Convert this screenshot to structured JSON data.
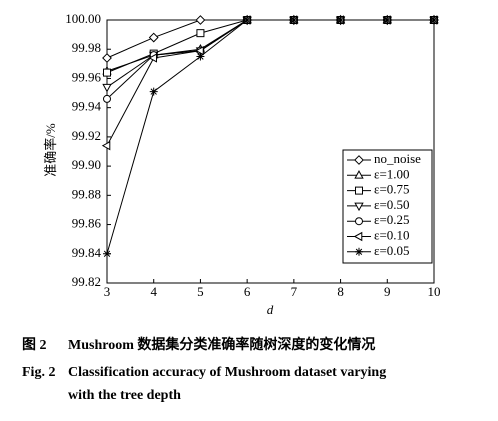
{
  "chart_data": {
    "type": "line",
    "xlabel": "d",
    "ylabel": "准确率/%",
    "x": [
      3,
      4,
      5,
      6,
      7,
      8,
      9,
      10
    ],
    "xlim": [
      3,
      10
    ],
    "xticks": [
      3,
      4,
      5,
      6,
      7,
      8,
      9,
      10
    ],
    "ylim": [
      99.82,
      100.0
    ],
    "yticks": [
      {
        "value": 99.82,
        "label": "99.82"
      },
      {
        "value": 99.84,
        "label": "99.84"
      },
      {
        "value": 99.86,
        "label": "99.86"
      },
      {
        "value": 99.88,
        "label": "99.88"
      },
      {
        "value": 99.9,
        "label": "99.90"
      },
      {
        "value": 99.92,
        "label": "99.92"
      },
      {
        "value": 99.94,
        "label": "99.94"
      },
      {
        "value": 99.96,
        "label": "99.96"
      },
      {
        "value": 99.98,
        "label": "99.98"
      },
      {
        "value": 100.0,
        "label": "100.00"
      }
    ],
    "legend_position": "lower right",
    "series": [
      {
        "name": "no_noise",
        "color": "#000000",
        "marker": "diamond",
        "values": [
          99.974,
          99.988,
          100.0,
          100.0,
          100.0,
          100.0,
          100.0,
          100.0
        ]
      },
      {
        "name": "ε=1.00",
        "color": "#000000",
        "marker": "triangle-up",
        "values": [
          99.965,
          99.976,
          99.98,
          100.0,
          100.0,
          100.0,
          100.0,
          100.0
        ]
      },
      {
        "name": "ε=0.75",
        "color": "#000000",
        "marker": "square",
        "values": [
          99.964,
          99.977,
          99.991,
          100.0,
          100.0,
          100.0,
          100.0,
          100.0
        ]
      },
      {
        "name": "ε=0.50",
        "color": "#000000",
        "marker": "triangle-down",
        "values": [
          99.954,
          99.976,
          99.979,
          100.0,
          100.0,
          100.0,
          100.0,
          100.0
        ]
      },
      {
        "name": "ε=0.25",
        "color": "#000000",
        "marker": "circle",
        "values": [
          99.946,
          99.976,
          99.979,
          100.0,
          100.0,
          100.0,
          100.0,
          100.0
        ]
      },
      {
        "name": "ε=0.10",
        "color": "#000000",
        "marker": "triangle-left",
        "values": [
          99.914,
          99.974,
          99.979,
          100.0,
          100.0,
          100.0,
          100.0,
          100.0
        ]
      },
      {
        "name": "ε=0.05",
        "color": "#000000",
        "marker": "star",
        "values": [
          99.84,
          99.951,
          99.975,
          100.0,
          100.0,
          100.0,
          100.0,
          100.0
        ]
      }
    ],
    "caption_zh": {
      "label": "图 2",
      "text": "Mushroom 数据集分类准确率随树深度的变化情况"
    },
    "caption_en": {
      "label": "Fig. 2",
      "lines": [
        "Classification accuracy of Mushroom dataset varying",
        "with the tree depth"
      ]
    }
  }
}
